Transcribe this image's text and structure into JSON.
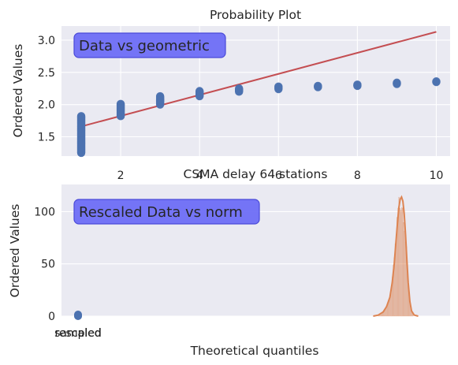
{
  "chart_data": [
    {
      "type": "scatter",
      "title": "Probability Plot",
      "xlabel": "",
      "ylabel": "Ordered Values",
      "annotation": "Data vs geometric",
      "xlim": [
        0.5,
        10.35
      ],
      "ylim": [
        1.2,
        3.22
      ],
      "xticks": [
        2,
        4,
        6,
        8,
        10
      ],
      "xtick_labels": [
        "2",
        "4",
        "6",
        "8",
        "10"
      ],
      "yticks": [
        1.5,
        2.0,
        2.5,
        3.0
      ],
      "ytick_labels": [
        "1.5",
        "2.0",
        "2.5",
        "3.0"
      ],
      "grid": true,
      "points": [
        {
          "x": 1,
          "y_min": 1.25,
          "y_max": 1.82
        },
        {
          "x": 2,
          "y_min": 1.82,
          "y_max": 2.01
        },
        {
          "x": 3,
          "y_min": 2.0,
          "y_max": 2.13
        },
        {
          "x": 4,
          "y_min": 2.13,
          "y_max": 2.21
        },
        {
          "x": 5,
          "y_min": 2.2,
          "y_max": 2.25
        },
        {
          "x": 6,
          "y_min": 2.24,
          "y_max": 2.28
        },
        {
          "x": 7,
          "y_min": 2.27,
          "y_max": 2.29
        },
        {
          "x": 8,
          "y_min": 2.29,
          "y_max": 2.31
        },
        {
          "x": 9,
          "y_min": 2.32,
          "y_max": 2.34
        },
        {
          "x": 10,
          "y_min": 2.35,
          "y_max": 2.36
        }
      ],
      "fit_line": {
        "x": [
          1,
          10
        ],
        "y": [
          1.66,
          3.13
        ]
      },
      "colors": {
        "points": "#4c72b0",
        "fit_line": "#c44e52"
      }
    },
    {
      "type": "histogram",
      "title": "CSMA delay 64 stations",
      "xlabel": "Theoretical quantiles",
      "ylabel": "Ordered Values",
      "annotation": "Rescaled Data vs norm",
      "ylim": [
        0,
        126
      ],
      "yticks": [
        0,
        50,
        100
      ],
      "ytick_labels": [
        "0",
        "50",
        "100"
      ],
      "xtick_labels_overlapping": [
        "sampled",
        "rescaled"
      ],
      "grid": true,
      "density_curve": {
        "x": [
          0.885,
          0.9,
          0.915,
          0.925,
          0.935,
          0.942,
          0.948,
          0.953,
          0.958,
          0.962,
          0.966,
          0.97,
          0.974,
          0.978,
          0.982,
          0.986,
          0.99,
          0.995,
          1.0,
          1.008,
          1.02
        ],
        "y": [
          0,
          1,
          4,
          9,
          18,
          32,
          50,
          70,
          90,
          104,
          112,
          114,
          110,
          98,
          78,
          54,
          32,
          14,
          5,
          1,
          0
        ]
      },
      "histogram_bars": {
        "x_start": 0.9,
        "x_end": 1.006,
        "bin_count": 38
      },
      "small_points": {
        "x": 0,
        "y": [
          0,
          0.5,
          1,
          1.5
        ]
      },
      "colors": {
        "curve": "#dd8452",
        "bars": "#dd8452",
        "points": "#4c72b0"
      }
    }
  ]
}
